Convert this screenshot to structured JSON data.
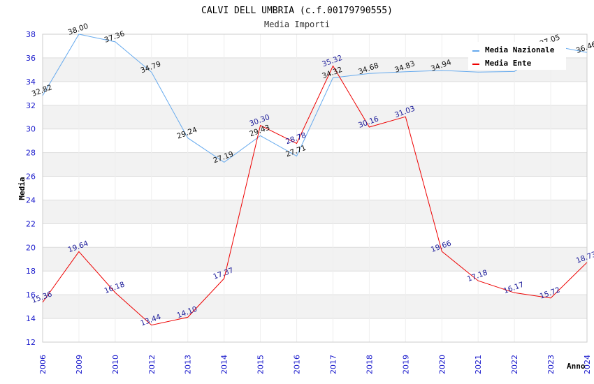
{
  "chart_data": {
    "type": "line",
    "title": "CALVI DELL UMBRIA (c.f.00179790555)",
    "subtitle": "Media Importi",
    "xlabel": "Anno",
    "ylabel": "Media",
    "categories": [
      "2006",
      "2009",
      "2010",
      "2012",
      "2013",
      "2014",
      "2015",
      "2016",
      "2017",
      "2018",
      "2019",
      "2020",
      "2021",
      "2022",
      "2023",
      "2024"
    ],
    "ylim": [
      12,
      38
    ],
    "yticks": [
      12,
      14,
      16,
      18,
      20,
      22,
      24,
      26,
      28,
      30,
      32,
      34,
      36,
      38
    ],
    "grid": true,
    "legend_position": "top-right",
    "series": [
      {
        "name": "Media Nazionale",
        "color": "#66aaee",
        "values": [
          32.82,
          38.0,
          37.36,
          34.79,
          29.24,
          27.19,
          29.43,
          27.71,
          34.32,
          34.68,
          34.83,
          34.94,
          34.8,
          34.85,
          37.05,
          36.46
        ],
        "labels": [
          "32.82",
          "38.00",
          "37.36",
          "34.79",
          "29.24",
          "27.19",
          "29.43",
          "27.71",
          "34.32",
          "34.68",
          "34.83",
          "34.94",
          "",
          "",
          "37.05",
          "36.46"
        ]
      },
      {
        "name": "Media Ente",
        "color": "#ee0000",
        "values": [
          15.36,
          19.64,
          16.18,
          13.44,
          14.1,
          17.37,
          30.3,
          28.78,
          35.32,
          30.16,
          31.03,
          19.66,
          17.18,
          16.17,
          15.72,
          18.73
        ],
        "labels": [
          "15.36",
          "19.64",
          "16.18",
          "13.44",
          "14.10",
          "17.37",
          "30.30",
          "28.78",
          "35.32",
          "30.16",
          "31.03",
          "19.66",
          "17.18",
          "16.17",
          "15.72",
          "18.73"
        ]
      }
    ]
  }
}
